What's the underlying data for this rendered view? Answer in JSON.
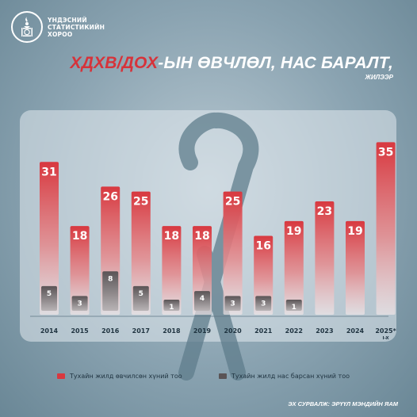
{
  "logo": {
    "icon": "soyombo-emblem-icon",
    "line1": "ҮНДЭСНИЙ",
    "line2": "СТАТИСТИКИЙН",
    "line3": "ХОРОО"
  },
  "title": {
    "accent_part": "ХДХВ/ДОХ",
    "rest": "-ЫН ӨВЧЛӨЛ, НАС БАРАЛТ,",
    "subtitle": "ЖИЛЭЭР"
  },
  "legend": {
    "cases_label": "Тухайн жилд өвчилсөн хүний тоо",
    "deaths_label": "Тухайн жилд нас барсан хүний тоо"
  },
  "source": "ЭХ СУРВАЛЖ: ЭРҮҮЛ МЭНДИЙН ЯАМ",
  "colors": {
    "cases": "#d8383f",
    "deaths": "#5a5456",
    "ribbon": "#5f7d8c"
  },
  "chart_data": {
    "type": "bar",
    "categories": [
      "2014",
      "2015",
      "2016",
      "2017",
      "2018",
      "2019",
      "2020",
      "2021",
      "2022",
      "2023",
      "2024",
      "2025*"
    ],
    "category_sublabels": [
      "",
      "",
      "",
      "",
      "",
      "",
      "",
      "",
      "",
      "",
      "",
      "I-X"
    ],
    "series": [
      {
        "name": "Тухайн жилд өвчилсөн хүний тоо",
        "values": [
          31,
          18,
          26,
          25,
          18,
          18,
          25,
          16,
          19,
          23,
          19,
          35
        ]
      },
      {
        "name": "Тухайн жилд нас барсан хүний тоо",
        "values": [
          5,
          3,
          8,
          5,
          1,
          4,
          3,
          3,
          1,
          null,
          null,
          null
        ]
      }
    ],
    "ylim": [
      0,
      37
    ],
    "grid": false,
    "legend_position": "bottom"
  }
}
